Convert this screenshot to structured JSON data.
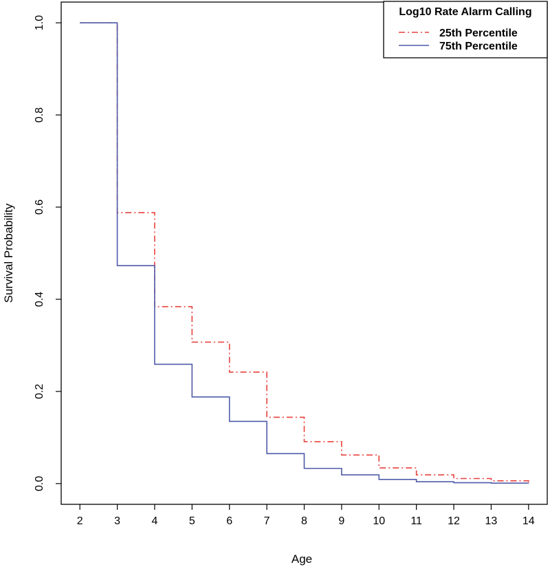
{
  "chart_data": {
    "type": "line",
    "step": true,
    "xlabel": "Age",
    "ylabel": "Survival Probability",
    "xlim": [
      1.5,
      14.5
    ],
    "ylim": [
      -0.045,
      1.045
    ],
    "x_ticks": [
      2,
      3,
      4,
      5,
      6,
      7,
      8,
      9,
      10,
      11,
      12,
      13,
      14
    ],
    "y_ticks": [
      0.0,
      0.2,
      0.4,
      0.6,
      0.8,
      1.0
    ],
    "y_tick_labels": [
      "0.0",
      "0.2",
      "0.4",
      "0.6",
      "0.8",
      "1.0"
    ],
    "legend": {
      "title": "Log10 Rate Alarm Calling",
      "position": "top-right"
    },
    "series": [
      {
        "name": "25th Percentile",
        "color": "#e8413c",
        "style": "dashdot",
        "x": [
          2,
          3,
          4,
          5,
          6,
          7,
          8,
          9,
          10,
          11,
          12,
          13,
          14
        ],
        "y": [
          1.0,
          0.588,
          0.384,
          0.307,
          0.242,
          0.144,
          0.091,
          0.062,
          0.034,
          0.019,
          0.011,
          0.006,
          0.003
        ]
      },
      {
        "name": "75th Percentile",
        "color": "#4f5aa8",
        "style": "solid",
        "x": [
          2,
          3,
          4,
          5,
          6,
          7,
          8,
          9,
          10,
          11,
          12,
          13,
          14
        ],
        "y": [
          1.0,
          0.473,
          0.259,
          0.188,
          0.135,
          0.065,
          0.033,
          0.019,
          0.009,
          0.004,
          0.002,
          0.001,
          0.0005
        ]
      }
    ]
  }
}
